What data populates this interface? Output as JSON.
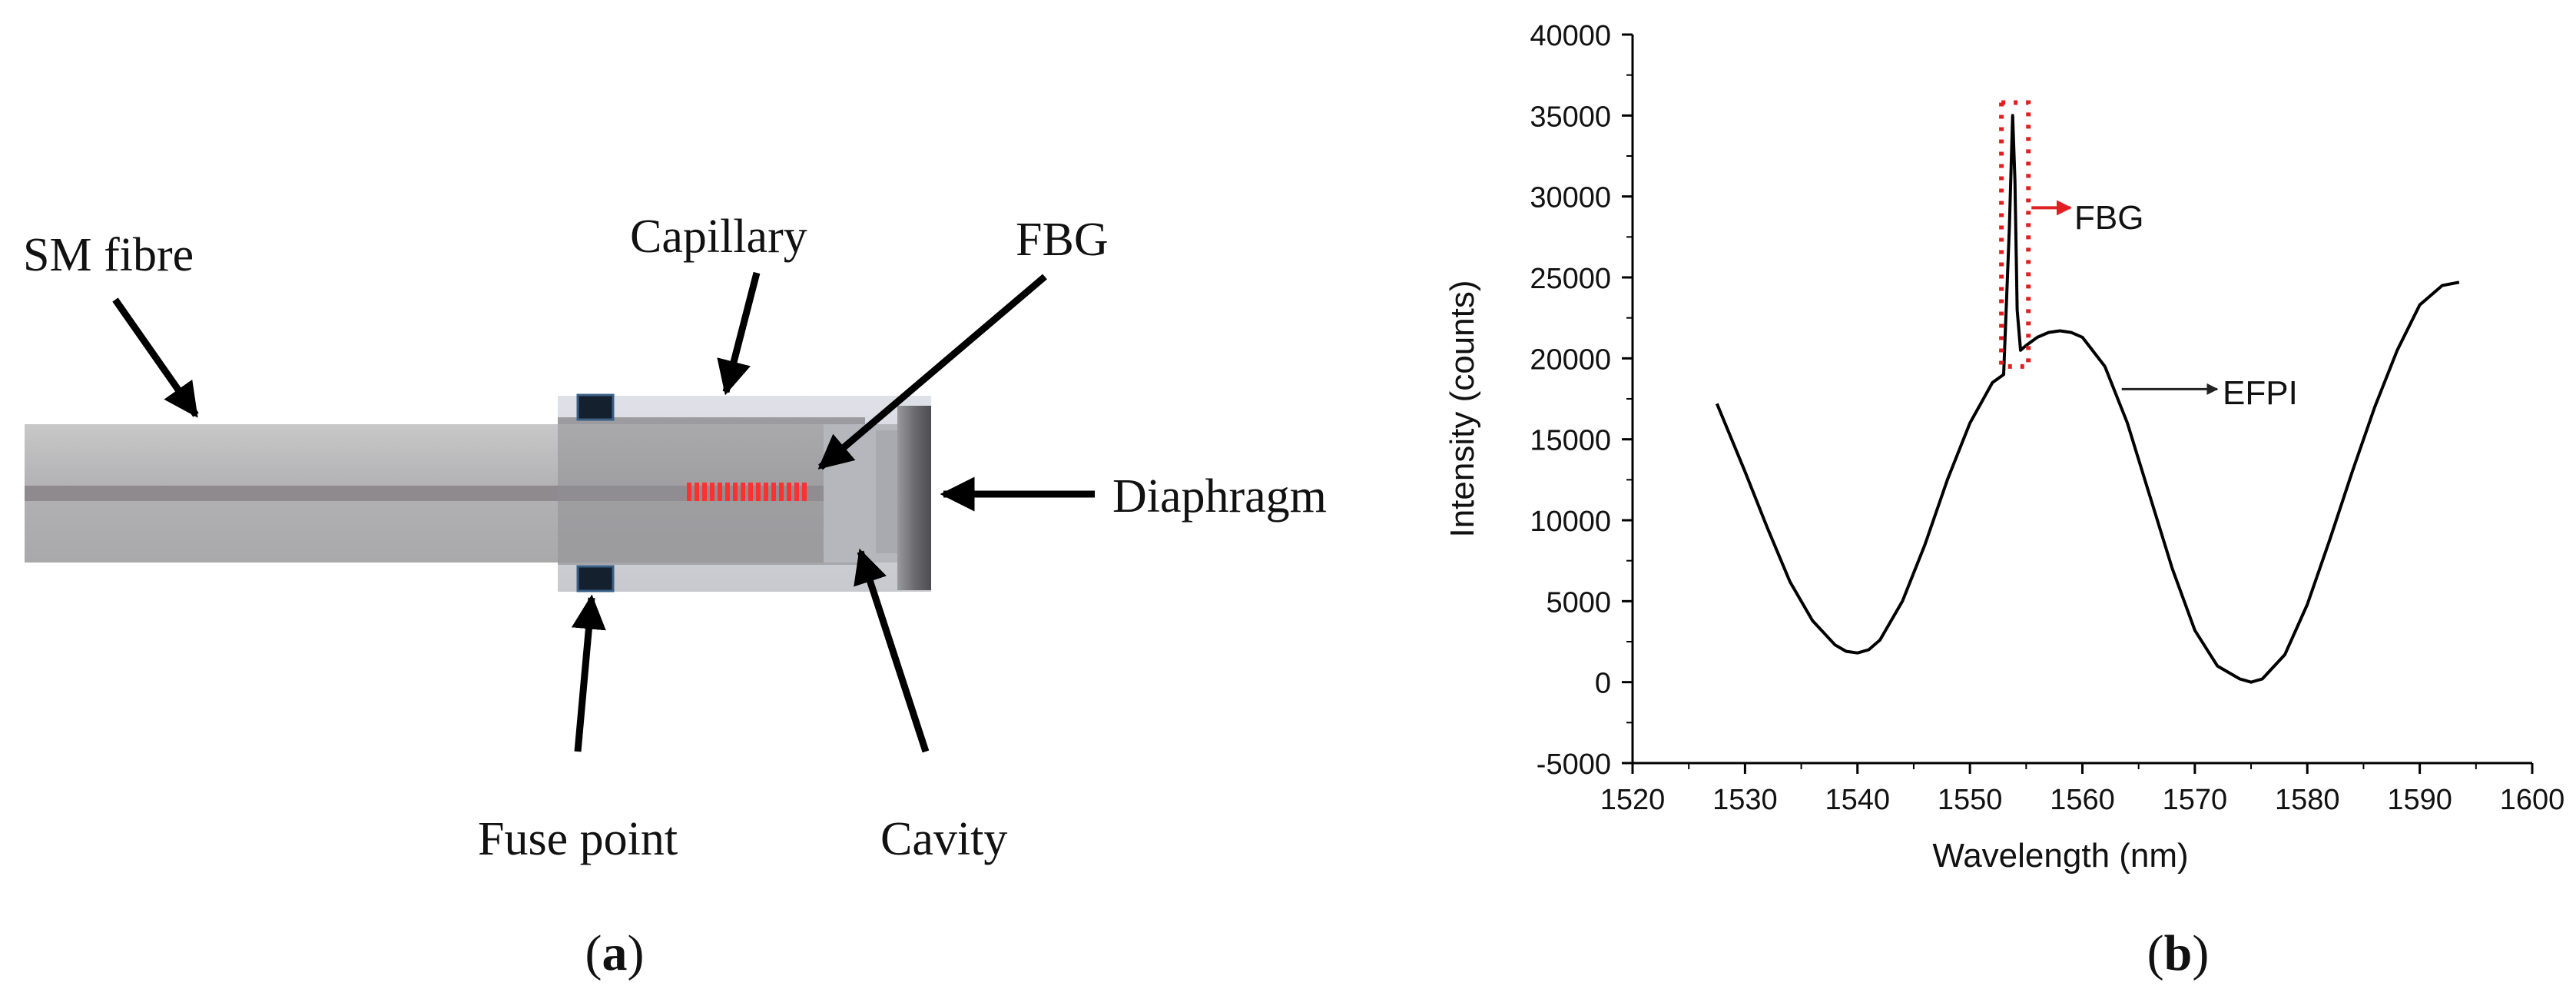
{
  "panel_a": {
    "caption_letter": "a",
    "labels": {
      "sm_fibre": "SM fibre",
      "capillary": "Capillary",
      "fbg": "FBG",
      "diaphragm": "Diaphragm",
      "fuse_point": "Fuse point",
      "cavity": "Cavity"
    }
  },
  "panel_b": {
    "caption_letter": "b",
    "annotations": {
      "fbg": "FBG",
      "efpi": "EFPI"
    }
  },
  "chart_data": {
    "type": "line",
    "xlabel": "Wavelength (nm)",
    "ylabel": "Intensity (counts)",
    "xlim": [
      1520,
      1600
    ],
    "ylim": [
      -5000,
      40000
    ],
    "xticks": [
      1520,
      1530,
      1540,
      1550,
      1560,
      1570,
      1580,
      1590,
      1600
    ],
    "yticks": [
      -5000,
      0,
      5000,
      10000,
      15000,
      20000,
      25000,
      30000,
      35000,
      40000
    ],
    "grid": false,
    "series": [
      {
        "x": [
          1527.5,
          1530,
          1532,
          1534,
          1536,
          1538,
          1539,
          1540,
          1541,
          1542,
          1544,
          1546,
          1548,
          1550,
          1552,
          1553,
          1553.5,
          1553.8,
          1554.0,
          1554.2,
          1554.5,
          1555,
          1556,
          1557,
          1558,
          1559,
          1560,
          1562,
          1564,
          1566,
          1568,
          1570,
          1572,
          1574,
          1575,
          1576,
          1578,
          1580,
          1582,
          1584,
          1586,
          1588,
          1590,
          1592,
          1593.5
        ],
        "y": [
          17200,
          13000,
          9500,
          6200,
          3800,
          2300,
          1900,
          1800,
          2000,
          2600,
          5000,
          8500,
          12500,
          16000,
          18500,
          19000,
          28000,
          35000,
          31000,
          23000,
          20500,
          20800,
          21300,
          21600,
          21700,
          21600,
          21300,
          19500,
          16000,
          11500,
          7000,
          3200,
          1000,
          200,
          0,
          200,
          1700,
          4800,
          8800,
          13000,
          17000,
          20500,
          23300,
          24500,
          24700
        ]
      }
    ]
  }
}
